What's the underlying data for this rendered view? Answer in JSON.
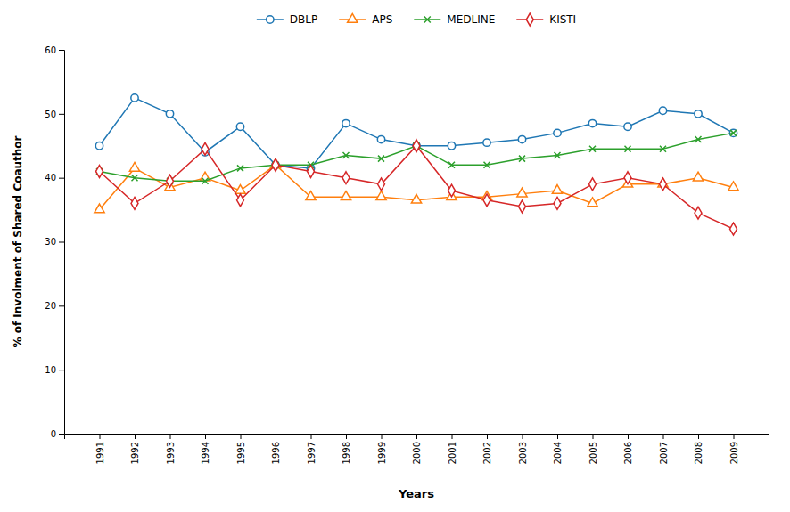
{
  "chart_data": {
    "type": "line",
    "x": [
      1991,
      1992,
      1993,
      1994,
      1995,
      1996,
      1997,
      1998,
      1999,
      2000,
      2001,
      2002,
      2003,
      2004,
      2005,
      2006,
      2007,
      2008,
      2009
    ],
    "xlim": [
      1990,
      2010
    ],
    "xticks": [
      1991,
      1992,
      1993,
      1994,
      1995,
      1996,
      1997,
      1998,
      1999,
      2000,
      2001,
      2002,
      2003,
      2004,
      2005,
      2006,
      2007,
      2008,
      2009
    ],
    "xlabel": "Years",
    "ylabel": "% of Involment of Shared Coauthor",
    "ylim": [
      0,
      60
    ],
    "yticks": [
      0,
      10,
      20,
      30,
      40,
      50,
      60
    ],
    "grid": false,
    "legend": "top",
    "series": [
      {
        "name": "DBLP",
        "marker": "circle",
        "values": [
          45,
          52.5,
          50,
          44,
          48,
          42,
          41.5,
          48.5,
          46,
          45,
          45,
          45.5,
          46,
          47,
          48.5,
          48,
          50.5,
          50,
          47
        ]
      },
      {
        "name": "APS",
        "marker": "triangle",
        "values": [
          35,
          41.5,
          38.5,
          40,
          38,
          42,
          37,
          37,
          37,
          36.5,
          37,
          37,
          37.5,
          38,
          36,
          39,
          39,
          40,
          38.5
        ]
      },
      {
        "name": "MEDLINE",
        "marker": "x",
        "values": [
          41,
          40,
          39.5,
          39.5,
          41.5,
          42,
          42,
          43.5,
          43,
          45,
          42,
          42,
          43,
          43.5,
          44.5,
          44.5,
          44.5,
          46,
          47
        ]
      },
      {
        "name": "KISTI",
        "marker": "diamond",
        "values": [
          41,
          36,
          39.5,
          44.5,
          36.5,
          42,
          41,
          40,
          39,
          45,
          38,
          36.5,
          35.5,
          36,
          39,
          40,
          39,
          34.5,
          32
        ]
      }
    ]
  }
}
